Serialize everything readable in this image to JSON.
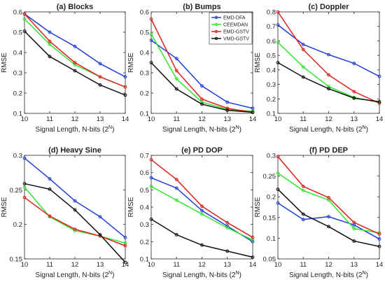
{
  "chart_data": [
    {
      "type": "line",
      "title": "(a) Blocks",
      "xlabel": "Signal Length, N-bits (2^N)",
      "ylabel": "RMSE",
      "xlim": [
        10,
        14
      ],
      "ylim": [
        0.1,
        0.6
      ],
      "x": [
        10,
        11,
        12,
        13,
        14
      ],
      "yticks": [
        "0.1",
        "0.2",
        "0.3",
        "0.4",
        "0.5",
        "0.6"
      ],
      "series": [
        {
          "name": "EMD-DFA",
          "color": "#1f3fd6",
          "values": [
            0.59,
            0.5,
            0.43,
            0.345,
            0.28
          ]
        },
        {
          "name": "CEEMDAN",
          "color": "#2ee62e",
          "values": [
            0.565,
            0.44,
            0.34,
            0.28,
            0.23
          ]
        },
        {
          "name": "EMD-GSTV",
          "color": "#e0201c",
          "values": [
            0.59,
            0.455,
            0.35,
            0.28,
            0.23
          ]
        },
        {
          "name": "VMD-GSTV",
          "color": "#111111",
          "values": [
            0.505,
            0.38,
            0.31,
            0.24,
            0.19
          ]
        }
      ]
    },
    {
      "type": "line",
      "title": "(b) Bumps",
      "xlabel": "Signal Length, N-bits (2^N)",
      "ylabel": "RMSE",
      "xlim": [
        10,
        14
      ],
      "ylim": [
        0.1,
        0.6
      ],
      "x": [
        10,
        11,
        12,
        13,
        14
      ],
      "yticks": [
        "0.1",
        "0.2",
        "0.3",
        "0.4",
        "0.5",
        "0.6"
      ],
      "series": [
        {
          "name": "EMD-DFA",
          "color": "#1f3fd6",
          "values": [
            0.46,
            0.37,
            0.235,
            0.155,
            0.125
          ]
        },
        {
          "name": "CEEMDAN",
          "color": "#2ee62e",
          "values": [
            0.49,
            0.27,
            0.155,
            0.12,
            0.11
          ]
        },
        {
          "name": "EMD-GSTV",
          "color": "#e0201c",
          "values": [
            0.565,
            0.31,
            0.17,
            0.125,
            0.105
          ]
        },
        {
          "name": "VMD-GSTV",
          "color": "#111111",
          "values": [
            0.35,
            0.22,
            0.145,
            0.115,
            0.105
          ]
        }
      ]
    },
    {
      "type": "line",
      "title": "(c) Doppler",
      "xlabel": "Signal Length, N-bits (2^N)",
      "ylabel": "RMSE",
      "xlim": [
        10,
        14
      ],
      "ylim": [
        0.1,
        0.8
      ],
      "x": [
        10,
        11,
        12,
        13,
        14
      ],
      "yticks": [
        "0.1",
        "0.2",
        "0.3",
        "0.4",
        "0.5",
        "0.6",
        "0.7",
        "0.8"
      ],
      "series": [
        {
          "name": "EMD-DFA",
          "color": "#1f3fd6",
          "values": [
            0.71,
            0.575,
            0.505,
            0.445,
            0.355
          ]
        },
        {
          "name": "CEEMDAN",
          "color": "#2ee62e",
          "values": [
            0.59,
            0.42,
            0.285,
            0.21,
            0.175
          ]
        },
        {
          "name": "EMD-GSTV",
          "color": "#e0201c",
          "values": [
            0.8,
            0.54,
            0.365,
            0.25,
            0.17
          ]
        },
        {
          "name": "VMD-GSTV",
          "color": "#111111",
          "values": [
            0.45,
            0.35,
            0.27,
            0.205,
            0.18
          ]
        }
      ]
    },
    {
      "type": "line",
      "title": "(d) Heavy Sine",
      "xlabel": "Signal Length, N-bits (2^N)",
      "ylabel": "RMSE",
      "xlim": [
        10,
        14
      ],
      "ylim": [
        0.15,
        0.3
      ],
      "x": [
        10,
        11,
        12,
        13,
        14
      ],
      "yticks": [
        "0.15",
        "0.2",
        "0.25",
        "0.3"
      ],
      "series": [
        {
          "name": "EMD-DFA",
          "color": "#1f3fd6",
          "values": [
            0.296,
            0.266,
            0.234,
            0.211,
            0.181
          ]
        },
        {
          "name": "CEEMDAN",
          "color": "#2ee62e",
          "values": [
            0.254,
            0.211,
            0.191,
            0.183,
            0.173
          ]
        },
        {
          "name": "EMD-GSTV",
          "color": "#e0201c",
          "values": [
            0.239,
            0.212,
            0.193,
            0.183,
            0.169
          ]
        },
        {
          "name": "VMD-GSTV",
          "color": "#111111",
          "values": [
            0.259,
            0.251,
            0.221,
            0.185,
            0.145
          ]
        }
      ]
    },
    {
      "type": "line",
      "title": "(e) PD DOP",
      "xlabel": "Signal Length, N-bits (2^N)",
      "ylabel": "RMSE",
      "xlim": [
        10,
        14
      ],
      "ylim": [
        0.1,
        0.7
      ],
      "x": [
        10,
        11,
        12,
        13,
        14
      ],
      "yticks": [
        "0.1",
        "0.2",
        "0.3",
        "0.4",
        "0.5",
        "0.6",
        "0.7"
      ],
      "series": [
        {
          "name": "EMD-DFA",
          "color": "#1f3fd6",
          "values": [
            0.57,
            0.51,
            0.38,
            0.29,
            0.2
          ]
        },
        {
          "name": "CEEMDAN",
          "color": "#2ee62e",
          "values": [
            0.52,
            0.44,
            0.36,
            0.28,
            0.21
          ]
        },
        {
          "name": "EMD-GSTV",
          "color": "#e0201c",
          "values": [
            0.675,
            0.56,
            0.405,
            0.31,
            0.225
          ]
        },
        {
          "name": "VMD-GSTV",
          "color": "#111111",
          "values": [
            0.33,
            0.24,
            0.18,
            0.145,
            0.11
          ]
        }
      ]
    },
    {
      "type": "line",
      "title": "(f) PD DEP",
      "xlabel": "Signal Length, N-bits (2^N)",
      "ylabel": "RMSE",
      "xlim": [
        10,
        14
      ],
      "ylim": [
        0.05,
        0.3
      ],
      "x": [
        10,
        11,
        12,
        13,
        14
      ],
      "yticks": [
        "0.05",
        "0.1",
        "0.15",
        "0.2",
        "0.25",
        "0.3"
      ],
      "series": [
        {
          "name": "EMD-DFA",
          "color": "#1f3fd6",
          "values": [
            0.185,
            0.145,
            0.152,
            0.132,
            0.098
          ]
        },
        {
          "name": "CEEMDAN",
          "color": "#2ee62e",
          "values": [
            0.257,
            0.215,
            0.192,
            0.123,
            0.113
          ]
        },
        {
          "name": "EMD-GSTV",
          "color": "#e0201c",
          "values": [
            0.297,
            0.225,
            0.198,
            0.138,
            0.11
          ]
        },
        {
          "name": "VMD-GSTV",
          "color": "#111111",
          "values": [
            0.218,
            0.158,
            0.128,
            0.093,
            0.08
          ]
        }
      ]
    }
  ],
  "legend": {
    "placement": "top-right of panel (b)",
    "entries": [
      "EMD-DFA",
      "CEEMDAN",
      "EMD-GSTV",
      "VMD-GSTV"
    ]
  }
}
